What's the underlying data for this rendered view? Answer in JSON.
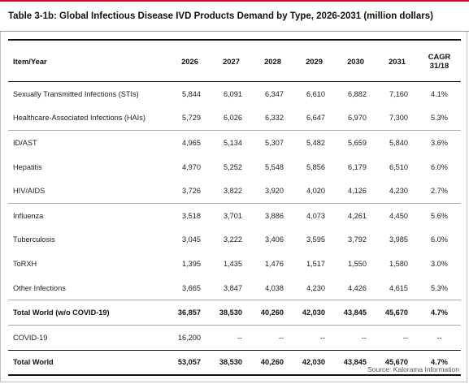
{
  "title": "Table 3-1b: Global Infectious Disease IVD Products Demand by Type, 2026-2031 (million dollars)",
  "header": {
    "item": "Item/Year",
    "years": [
      "2026",
      "2027",
      "2028",
      "2029",
      "2030",
      "2031"
    ],
    "cagr_line1": "CAGR",
    "cagr_line2": "31/18"
  },
  "rows": [
    {
      "label": "Sexually Transmitted Infections (STIs)",
      "values": [
        "5,844",
        "6,091",
        "6,347",
        "6,610",
        "6,882",
        "7,160"
      ],
      "cagr": "4.1%"
    },
    {
      "label": "Healthcare-Associated Infections (HAIs)",
      "values": [
        "5,729",
        "6,026",
        "6,332",
        "6,647",
        "6,970",
        "7,300"
      ],
      "cagr": "5.3%"
    },
    {
      "label": "ID/AST",
      "values": [
        "4,965",
        "5,134",
        "5,307",
        "5,482",
        "5,659",
        "5,840"
      ],
      "cagr": "3.6%"
    },
    {
      "label": "Hepatitis",
      "values": [
        "4,970",
        "5,252",
        "5,548",
        "5,856",
        "6,179",
        "6,510"
      ],
      "cagr": "6.0%"
    },
    {
      "label": "HIV/AIDS",
      "values": [
        "3,726",
        "3,822",
        "3,920",
        "4,020",
        "4,126",
        "4,230"
      ],
      "cagr": "2.7%"
    },
    {
      "label": "Influenza",
      "values": [
        "3,518",
        "3,701",
        "3,886",
        "4,073",
        "4,261",
        "4,450"
      ],
      "cagr": "5.6%"
    },
    {
      "label": "Tuberculosis",
      "values": [
        "3,045",
        "3,222",
        "3,406",
        "3,595",
        "3,792",
        "3,985"
      ],
      "cagr": "6.0%"
    },
    {
      "label": "ToRXH",
      "values": [
        "1,395",
        "1,435",
        "1,476",
        "1,517",
        "1,550",
        "1,580"
      ],
      "cagr": "3.0%"
    },
    {
      "label": "Other Infections",
      "values": [
        "3,665",
        "3,847",
        "4,038",
        "4,230",
        "4,426",
        "4,615"
      ],
      "cagr": "5.3%"
    },
    {
      "label": "Total World (w/o COVID-19)",
      "values": [
        "36,857",
        "38,530",
        "40,260",
        "42,030",
        "43,845",
        "45,670"
      ],
      "cagr": "4.7%"
    },
    {
      "label": "COVID-19",
      "values": [
        "16,200",
        "--",
        "--",
        "--",
        "--",
        "--"
      ],
      "cagr": "--"
    },
    {
      "label": "Total World",
      "values": [
        "53,057",
        "38,530",
        "40,260",
        "42,030",
        "43,845",
        "45,670"
      ],
      "cagr": "4.7%"
    }
  ],
  "source": "Source:  Kalorama Information",
  "colors": {
    "accent": "#c8102e"
  }
}
